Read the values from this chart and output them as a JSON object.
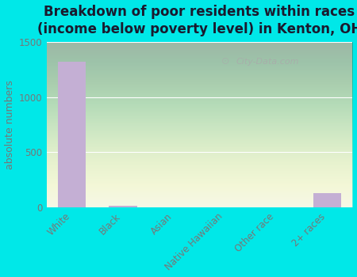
{
  "title": "Breakdown of poor residents within races\n(income below poverty level) in Kenton, OH",
  "categories": [
    "White",
    "Black",
    "Asian",
    "Native Hawaiian",
    "Other race",
    "2+ races"
  ],
  "values": [
    1320,
    15,
    0,
    0,
    0,
    130
  ],
  "bar_color": "#c4afd4",
  "ylabel": "absolute numbers",
  "ylim": [
    0,
    1500
  ],
  "yticks": [
    0,
    500,
    1000,
    1500
  ],
  "background_outer": "#00e8e8",
  "background_inner_color1": "#f2f5e8",
  "background_inner_color2": "#deecd8",
  "title_fontsize": 12,
  "axis_label_fontsize": 9,
  "tick_label_fontsize": 8.5,
  "watermark": "City-Data.com",
  "grid_color": "#ffffff",
  "title_color": "#1a1a2e",
  "tick_color": "#777777"
}
